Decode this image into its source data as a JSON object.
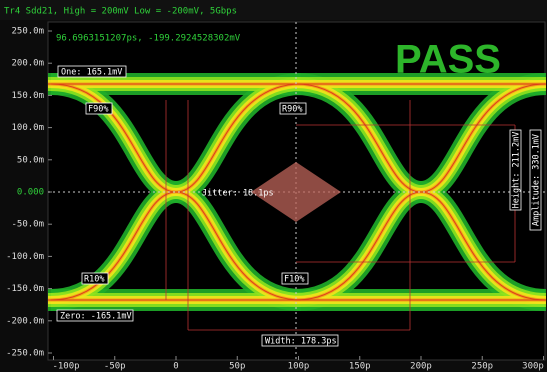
{
  "chart_data": {
    "type": "eye",
    "title": "Tr4 Sdd21, High = 200mV Low = -200mV, 5Gbps",
    "cursor_readout": "96.6963151207ps, -199.2924528302mV",
    "status": "PASS",
    "annotations": {
      "one": "One: 165.1mV",
      "zero": "Zero: -165.1mV",
      "f90": "F90%",
      "r90": "R90%",
      "r10": "R10%",
      "f10": "F10%",
      "jitter": "Jitter: 18.1ps",
      "width": "Width: 178.3ps",
      "height": "Height: 211.2mV",
      "amplitude": "Amplitude: 330.1mV"
    },
    "xlim": [
      -100,
      300
    ],
    "xticks": [
      {
        "value": -100,
        "label": "-100p"
      },
      {
        "value": -50,
        "label": "-50p"
      },
      0,
      {
        "value": 50,
        "label": "50p"
      },
      {
        "value": 100,
        "label": "100p"
      },
      {
        "value": 150,
        "label": "150p"
      },
      {
        "value": 200,
        "label": "200p"
      },
      {
        "value": 250,
        "label": "250p"
      },
      {
        "value": 300,
        "label": "300p"
      }
    ],
    "ylim": [
      -250,
      250
    ],
    "yticks": [
      {
        "value": 250,
        "label": "250.0m"
      },
      {
        "value": 200,
        "label": "200.0m"
      },
      {
        "value": 150,
        "label": "150.0m"
      },
      {
        "value": 100,
        "label": "100.0m"
      },
      {
        "value": 50,
        "label": "50.0m"
      },
      {
        "value": 0,
        "label": "0.000"
      },
      {
        "value": -50,
        "label": "-50.0m"
      },
      {
        "value": -100,
        "label": "-100.0m"
      },
      {
        "value": -150,
        "label": "-150.0m"
      },
      {
        "value": -200,
        "label": "-200.0m"
      },
      {
        "value": -250,
        "label": "-250.0m"
      }
    ]
  }
}
